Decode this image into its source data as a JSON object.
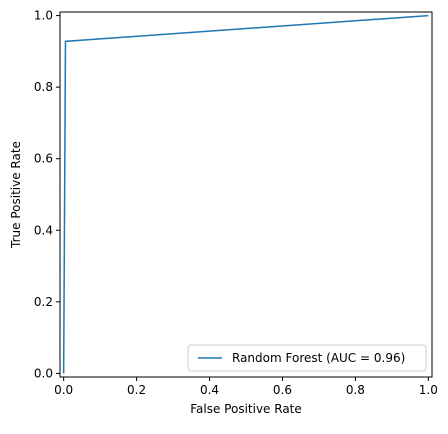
{
  "chart_data": {
    "type": "line",
    "title": "",
    "xlabel": "False Positive Rate",
    "ylabel": "True Positive Rate",
    "xlim": [
      -0.01,
      1.01
    ],
    "ylim": [
      -0.01,
      1.01
    ],
    "x_ticks": [
      "0.0",
      "0.2",
      "0.4",
      "0.6",
      "0.8",
      "1.0"
    ],
    "y_ticks": [
      "0.0",
      "0.2",
      "0.4",
      "0.6",
      "0.8",
      "1.0"
    ],
    "grid": false,
    "legend_position": "lower-right",
    "series": [
      {
        "name": "Random Forest (AUC = 0.96)",
        "color": "#1f77b4",
        "x": [
          0.0,
          0.005,
          1.0
        ],
        "y": [
          0.0,
          0.928,
          1.0
        ]
      }
    ]
  }
}
